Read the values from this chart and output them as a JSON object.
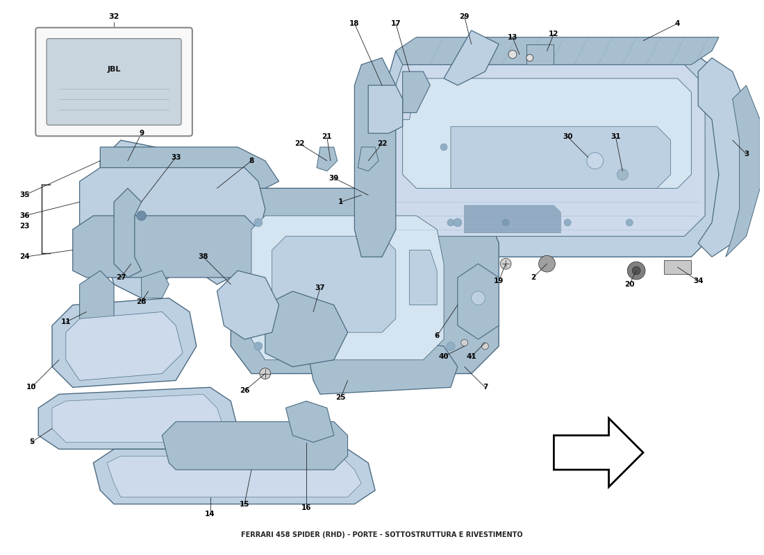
{
  "title": "FERRARI 458 SPIDER (RHD) - PORTE - SOTTOSTRUTTURA E RIVESTIMENTO",
  "background_color": "#ffffff",
  "fig_width": 11.0,
  "fig_height": 8.0,
  "dc1": "#a8bfd0",
  "dc2": "#bdd0e2",
  "dc3": "#ccdaec",
  "dc_dark": "#6e8ea8",
  "dc_mid": "#90aec4",
  "dc_light": "#d4e4f0",
  "edge": "#4a6a80",
  "lc": "#222222",
  "wm_color": "#d4c84a",
  "wm_alpha": 0.45
}
